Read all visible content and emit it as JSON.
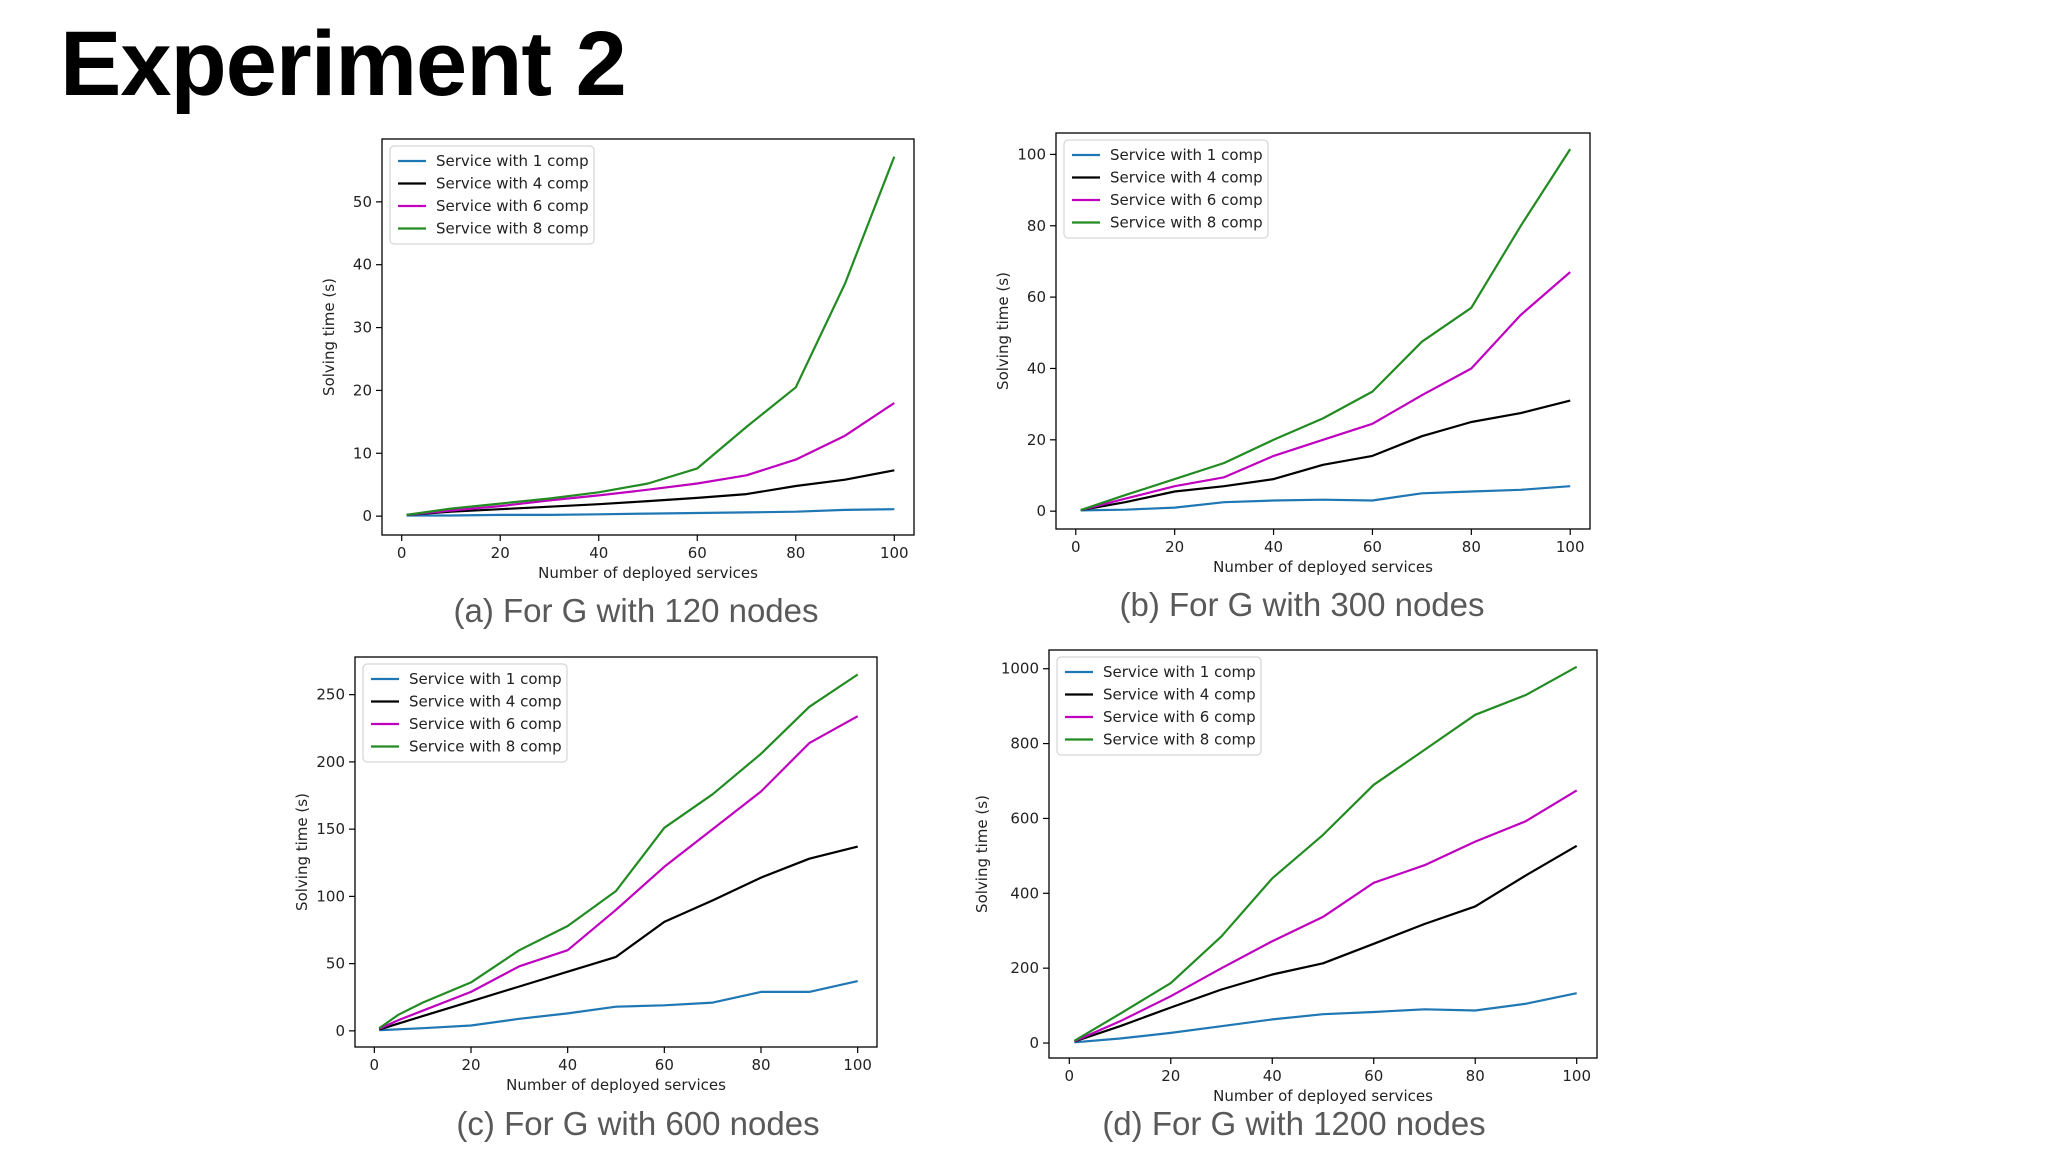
{
  "slide": {
    "title": "Experiment 2"
  },
  "chart_data": [
    {
      "type": "line",
      "caption": "(a) For G with 120 nodes",
      "xlabel": "Number of deployed services",
      "ylabel": "Solving time (s)",
      "xlim": [
        -4,
        104
      ],
      "ylim": [
        -3,
        60
      ],
      "xticks": [
        0,
        20,
        40,
        60,
        80,
        100
      ],
      "yticks": [
        0,
        10,
        20,
        30,
        40,
        50
      ],
      "legend": "top-left",
      "grid": false,
      "series": [
        {
          "name": "Service with 1 comp",
          "color": "#1f77b4",
          "x": [
            1,
            10,
            20,
            30,
            40,
            50,
            60,
            70,
            80,
            90,
            100
          ],
          "y": [
            0.1,
            0.1,
            0.2,
            0.2,
            0.3,
            0.4,
            0.5,
            0.6,
            0.7,
            1.0,
            1.1
          ]
        },
        {
          "name": "Service with 4 comp",
          "color": "#000000",
          "x": [
            1,
            10,
            20,
            30,
            40,
            50,
            60,
            70,
            80,
            90,
            100
          ],
          "y": [
            0.2,
            0.7,
            1.1,
            1.5,
            1.9,
            2.4,
            2.9,
            3.5,
            4.8,
            5.8,
            7.3
          ]
        },
        {
          "name": "Service with 6 comp",
          "color": "#bf00bf",
          "x": [
            1,
            10,
            20,
            30,
            40,
            50,
            60,
            70,
            80,
            90,
            100
          ],
          "y": [
            0.2,
            0.9,
            1.6,
            2.5,
            3.3,
            4.2,
            5.2,
            6.5,
            9.0,
            12.8,
            18.0
          ]
        },
        {
          "name": "Service with 8 comp",
          "color": "#228b22",
          "x": [
            1,
            10,
            20,
            30,
            40,
            50,
            60,
            70,
            80,
            90,
            100
          ],
          "y": [
            0.2,
            1.2,
            2.0,
            2.8,
            3.8,
            5.2,
            7.6,
            14.2,
            20.5,
            37.0,
            57.2
          ]
        }
      ]
    },
    {
      "type": "line",
      "caption": "(b) For G with 300 nodes",
      "xlabel": "Number of deployed services",
      "ylabel": "Solving time (s)",
      "xlim": [
        -4,
        104
      ],
      "ylim": [
        -5,
        106
      ],
      "xticks": [
        0,
        20,
        40,
        60,
        80,
        100
      ],
      "yticks": [
        0,
        20,
        40,
        60,
        80,
        100
      ],
      "legend": "top-left",
      "grid": false,
      "series": [
        {
          "name": "Service with 1 comp",
          "color": "#1f77b4",
          "x": [
            1,
            10,
            20,
            30,
            40,
            50,
            60,
            70,
            80,
            90,
            100
          ],
          "y": [
            0.2,
            0.4,
            1.0,
            2.5,
            3.0,
            3.2,
            3.0,
            5.0,
            5.5,
            6.0,
            7.0
          ]
        },
        {
          "name": "Service with 4 comp",
          "color": "#000000",
          "x": [
            1,
            10,
            20,
            30,
            40,
            50,
            60,
            70,
            80,
            90,
            100
          ],
          "y": [
            0.3,
            2.5,
            5.5,
            7.0,
            9.0,
            13.0,
            15.5,
            21.0,
            25.0,
            27.5,
            31.0
          ]
        },
        {
          "name": "Service with 6 comp",
          "color": "#bf00bf",
          "x": [
            1,
            10,
            20,
            30,
            40,
            50,
            60,
            70,
            80,
            90,
            100
          ],
          "y": [
            0.3,
            3.5,
            7.0,
            9.5,
            15.5,
            20.0,
            24.5,
            32.5,
            40.0,
            55.0,
            67.0
          ]
        },
        {
          "name": "Service with 8 comp",
          "color": "#228b22",
          "x": [
            1,
            10,
            20,
            30,
            40,
            50,
            60,
            70,
            80,
            90,
            100
          ],
          "y": [
            0.3,
            4.5,
            9.0,
            13.5,
            20.0,
            26.0,
            33.5,
            47.5,
            57.0,
            80.0,
            101.5
          ]
        }
      ]
    },
    {
      "type": "line",
      "caption": "(c) For G with 600 nodes",
      "xlabel": "Number of deployed services",
      "ylabel": "Solving time (s)",
      "xlim": [
        -4,
        104
      ],
      "ylim": [
        -12,
        278
      ],
      "xticks": [
        0,
        20,
        40,
        60,
        80,
        100
      ],
      "yticks": [
        0,
        50,
        100,
        150,
        200,
        250
      ],
      "legend": "top-left",
      "grid": false,
      "series": [
        {
          "name": "Service with 1 comp",
          "color": "#1f77b4",
          "x": [
            1,
            10,
            20,
            30,
            40,
            50,
            60,
            70,
            80,
            90,
            100
          ],
          "y": [
            0.5,
            2.0,
            4.0,
            9.0,
            13.0,
            18.0,
            19.0,
            21.0,
            29.0,
            29.0,
            37.0
          ]
        },
        {
          "name": "Service with 4 comp",
          "color": "#000000",
          "x": [
            1,
            10,
            20,
            30,
            40,
            50,
            60,
            70,
            80,
            90,
            100
          ],
          "y": [
            1.0,
            11.0,
            22.0,
            33.0,
            44.0,
            55.0,
            81.0,
            97.0,
            114.0,
            128.0,
            137.0
          ]
        },
        {
          "name": "Service with 6 comp",
          "color": "#bf00bf",
          "x": [
            1,
            5,
            10,
            20,
            30,
            40,
            50,
            60,
            70,
            80,
            90,
            100
          ],
          "y": [
            1.5,
            8.0,
            15.0,
            29.0,
            48.0,
            60.0,
            90.0,
            122.0,
            150.0,
            178.0,
            214.0,
            234.0
          ]
        },
        {
          "name": "Service with 8 comp",
          "color": "#228b22",
          "x": [
            1,
            5,
            10,
            20,
            30,
            40,
            50,
            60,
            70,
            80,
            90,
            100
          ],
          "y": [
            2.0,
            12.0,
            21.0,
            36.0,
            60.0,
            78.0,
            104.0,
            151.0,
            176.0,
            206.0,
            241.0,
            265.0
          ]
        }
      ]
    },
    {
      "type": "line",
      "caption": "(d) For G with 1200 nodes",
      "xlabel": "Number of deployed services",
      "ylabel": "Solving time (s)",
      "xlim": [
        -4,
        104
      ],
      "ylim": [
        -40,
        1050
      ],
      "xticks": [
        0,
        20,
        40,
        60,
        80,
        100
      ],
      "yticks": [
        0,
        200,
        400,
        600,
        800,
        1000
      ],
      "legend": "top-left",
      "grid": false,
      "series": [
        {
          "name": "Service with 1 comp",
          "color": "#1f77b4",
          "x": [
            1,
            10,
            20,
            30,
            40,
            50,
            60,
            70,
            80,
            90,
            100
          ],
          "y": [
            2,
            12,
            27,
            45,
            63,
            77,
            83,
            90,
            87,
            105,
            133
          ]
        },
        {
          "name": "Service with 4 comp",
          "color": "#000000",
          "x": [
            1,
            10,
            20,
            30,
            40,
            50,
            60,
            70,
            80,
            90,
            100
          ],
          "y": [
            4,
            45,
            95,
            143,
            183,
            213,
            265,
            318,
            365,
            448,
            527
          ]
        },
        {
          "name": "Service with 6 comp",
          "color": "#bf00bf",
          "x": [
            1,
            10,
            20,
            30,
            40,
            50,
            60,
            70,
            80,
            90,
            100
          ],
          "y": [
            5,
            58,
            125,
            200,
            272,
            337,
            428,
            475,
            538,
            593,
            675
          ]
        },
        {
          "name": "Service with 8 comp",
          "color": "#228b22",
          "x": [
            1,
            10,
            20,
            30,
            40,
            50,
            60,
            70,
            80,
            90,
            100
          ],
          "y": [
            6,
            78,
            160,
            285,
            440,
            556,
            690,
            783,
            877,
            930,
            1005
          ]
        }
      ]
    }
  ]
}
